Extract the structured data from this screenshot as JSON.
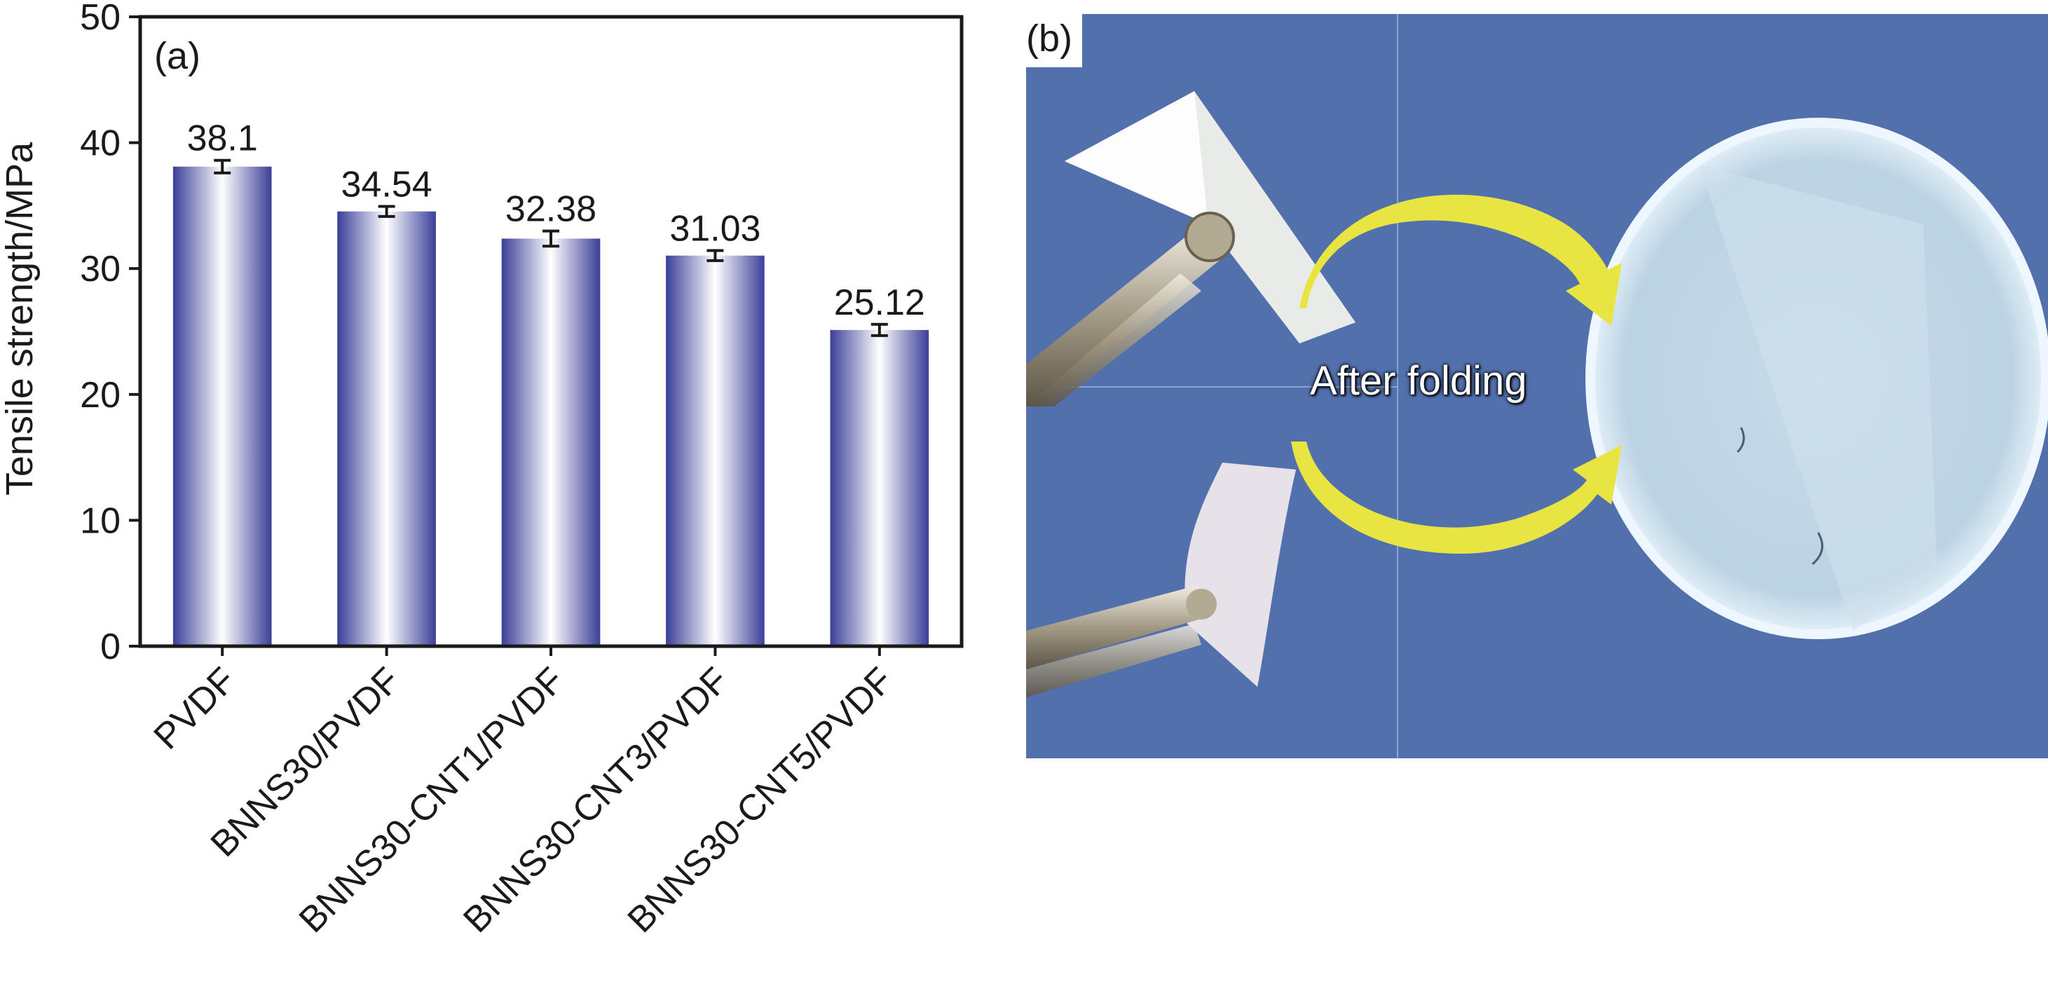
{
  "panel_a_label": "(a)",
  "panel_b_label": "(b)",
  "photo_caption": "After folding",
  "colors": {
    "bar_edge": "#3b3f98",
    "bar_center": "#ffffff",
    "photo_bg": "#5270ac",
    "arrow": "#e8e442",
    "axis": "#1a1a1a"
  },
  "chart_data": {
    "type": "bar",
    "title": "",
    "xlabel": "",
    "ylabel": "Tensile strength/MPa",
    "ylim": [
      0,
      50
    ],
    "yticks": [
      "0",
      "10",
      "20",
      "30",
      "40",
      "50"
    ],
    "categories": [
      "PVDF",
      "BNNS30/PVDF",
      "BNNS30-CNT1/PVDF",
      "BNNS30-CNT3/PVDF",
      "BNNS30-CNT5/PVDF"
    ],
    "values": [
      38.1,
      34.54,
      32.38,
      31.03,
      25.12
    ],
    "value_labels": [
      "38.1",
      "34.54",
      "32.38",
      "31.03",
      "25.12"
    ],
    "errors": [
      0.5,
      0.4,
      0.6,
      0.4,
      0.45
    ],
    "grid": false,
    "legend": "none"
  }
}
